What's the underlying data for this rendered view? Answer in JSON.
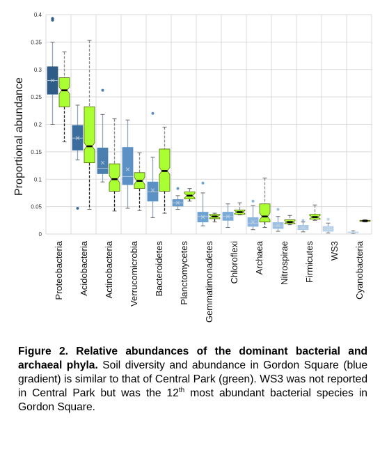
{
  "chart_data": {
    "type": "box",
    "ylabel": "Proportional abundance",
    "ylim": [
      0,
      0.4
    ],
    "yticks": [
      "0",
      "0.05",
      "0.1",
      "0.15",
      "0.2",
      "0.25",
      "0.3",
      "0.35",
      "0.4"
    ],
    "categories": [
      "Proteobacteria",
      "Acidobacteria",
      "Actinobacteria",
      "Verrucomicrobia",
      "Bacteroidetes",
      "Planctomycetes",
      "Gemmatimonadetes",
      "Chloroflexi",
      "Archaea",
      "Nitrospirae",
      "Firmicutes",
      "WS3",
      "Cyanobacteria"
    ],
    "colors": {
      "gordon": [
        "#2f5b87",
        "#3a6d9d",
        "#4a7fb0",
        "#5b91c4",
        "#5b91c4",
        "#669bcc",
        "#6ea3d3",
        "#7aabd8",
        "#8bb5de",
        "#9bc0e2",
        "#a9c9e6",
        "#b9d3ea",
        "#c9dcee"
      ],
      "central": "#aaff33",
      "median_central": "#000000"
    },
    "series": [
      {
        "boxes": [
          {
            "min": 0.2,
            "q1": 0.255,
            "median": 0.28,
            "q3": 0.305,
            "max": 0.35,
            "mean": 0.28,
            "outliers": [
              0.39,
              0.393
            ]
          },
          {
            "min": 0.135,
            "q1": 0.153,
            "median": 0.175,
            "q3": 0.198,
            "max": 0.235,
            "mean": 0.175,
            "outliers": [
              0.047
            ]
          },
          {
            "min": 0.095,
            "q1": 0.11,
            "median": 0.12,
            "q3": 0.157,
            "max": 0.218,
            "mean": 0.13,
            "outliers": [
              0.262
            ]
          },
          {
            "min": 0.047,
            "q1": 0.09,
            "median": 0.105,
            "q3": 0.158,
            "max": 0.208,
            "mean": 0.118,
            "outliers": []
          },
          {
            "min": 0.03,
            "q1": 0.06,
            "median": 0.077,
            "q3": 0.095,
            "max": 0.14,
            "mean": 0.08,
            "outliers": [
              0.22
            ]
          },
          {
            "min": 0.045,
            "q1": 0.051,
            "median": 0.057,
            "q3": 0.063,
            "max": 0.07,
            "mean": 0.057,
            "outliers": [
              0.083
            ]
          },
          {
            "min": 0.015,
            "q1": 0.022,
            "median": 0.032,
            "q3": 0.04,
            "max": 0.075,
            "mean": 0.031,
            "outliers": [
              0.093
            ]
          },
          {
            "min": 0.012,
            "q1": 0.025,
            "median": 0.032,
            "q3": 0.04,
            "max": 0.055,
            "mean": 0.032,
            "outliers": []
          },
          {
            "min": 0.008,
            "q1": 0.014,
            "median": 0.02,
            "q3": 0.03,
            "max": 0.052,
            "mean": 0.022,
            "outliers": [
              0.06
            ]
          },
          {
            "min": 0.005,
            "q1": 0.01,
            "median": 0.015,
            "q3": 0.021,
            "max": 0.032,
            "mean": 0.016,
            "outliers": [
              0.045
            ]
          },
          {
            "min": 0.004,
            "q1": 0.008,
            "median": 0.011,
            "q3": 0.016,
            "max": 0.022,
            "mean": 0.012,
            "outliers": [
              0.025
            ]
          },
          {
            "min": 0.002,
            "q1": 0.005,
            "median": 0.009,
            "q3": 0.014,
            "max": 0.02,
            "mean": 0.01,
            "outliers": [
              0.027
            ]
          },
          {
            "min": 0.001,
            "q1": 0.002,
            "median": 0.003,
            "q3": 0.004,
            "max": 0.006,
            "mean": 0.003,
            "outliers": []
          }
        ]
      },
      {
        "boxes": [
          {
            "min": 0.168,
            "q1": 0.232,
            "median": 0.262,
            "q3": 0.285,
            "max": 0.332,
            "outliers": []
          },
          {
            "min": 0.045,
            "q1": 0.13,
            "median": 0.16,
            "q3": 0.232,
            "max": 0.353,
            "outliers": []
          },
          {
            "min": 0.042,
            "q1": 0.078,
            "median": 0.1,
            "q3": 0.128,
            "max": 0.21,
            "outliers": []
          },
          {
            "min": 0.043,
            "q1": 0.083,
            "median": 0.097,
            "q3": 0.112,
            "max": 0.148,
            "outliers": []
          },
          {
            "min": 0.038,
            "q1": 0.078,
            "median": 0.115,
            "q3": 0.155,
            "max": 0.195,
            "outliers": []
          },
          {
            "min": 0.06,
            "q1": 0.064,
            "median": 0.07,
            "q3": 0.077,
            "max": 0.083,
            "outliers": []
          },
          {
            "min": 0.022,
            "q1": 0.028,
            "median": 0.032,
            "q3": 0.036,
            "max": 0.038,
            "outliers": []
          },
          {
            "min": 0.035,
            "q1": 0.036,
            "median": 0.04,
            "q3": 0.044,
            "max": 0.057,
            "outliers": []
          },
          {
            "min": 0.012,
            "q1": 0.022,
            "median": 0.032,
            "q3": 0.055,
            "max": 0.102,
            "outliers": []
          },
          {
            "min": 0.017,
            "q1": 0.019,
            "median": 0.022,
            "q3": 0.026,
            "max": 0.034,
            "outliers": []
          },
          {
            "min": 0.025,
            "q1": 0.027,
            "median": 0.031,
            "q3": 0.036,
            "max": 0.053,
            "outliers": []
          },
          null,
          {
            "min": 0.022,
            "q1": 0.023,
            "median": 0.024,
            "q3": 0.025,
            "max": 0.026,
            "outliers": []
          }
        ]
      }
    ],
    "grid": true
  },
  "caption": {
    "figure_label": "Figure 2. Relative abundances of the dominant bacterial and archaeal phyla.",
    "text_part1": " Soil diversity and abundance in Gordon Square (blue gradient) is similar to that of Central Park (green). WS3 was not reported in Central Park but was the 12",
    "superscript": "th",
    "text_part2": " most abundant bacterial species in Gordon Square."
  }
}
